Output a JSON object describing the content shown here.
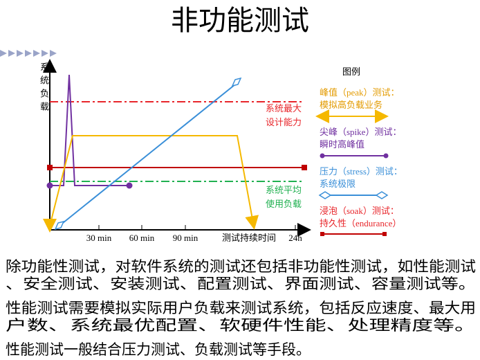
{
  "title": "非功能测试",
  "diagram": {
    "y_axis_label": "系统负载",
    "x_ticks": [
      "30 min",
      "60 min",
      "90 min",
      "测试持续时间",
      "24h"
    ],
    "max_line_label": [
      "系统最大",
      "设计能力"
    ],
    "avg_line_label": [
      "系统平均",
      "使用负载"
    ],
    "legend": {
      "title": "图例",
      "items": [
        {
          "lines": [
            "峰值（peak）测试：",
            "模拟高负载业务"
          ]
        },
        {
          "lines": [
            "尖峰（spike）测试：",
            "瞬时高峰值"
          ]
        },
        {
          "lines": [
            "压力（stress）测试：",
            "系统极限"
          ]
        },
        {
          "lines": [
            "浸泡（soak）测试：",
            "持久性（endurance）"
          ]
        }
      ]
    }
  },
  "body": [
    [
      "除功能性测试，对软件系统的测试还包括非功能性测试，如性能测试",
      "、安全测试、安装测试、配置测试、界面测试、容量测试等。"
    ],
    [
      "性能测试需要模拟实际用户负载来测试系统，包括反应速度、最大用",
      "户数、系统最优配置、软硬件性能、处理精度等。"
    ],
    [
      "性能测试一般结合压力测试、负载测试等手段。"
    ]
  ]
}
